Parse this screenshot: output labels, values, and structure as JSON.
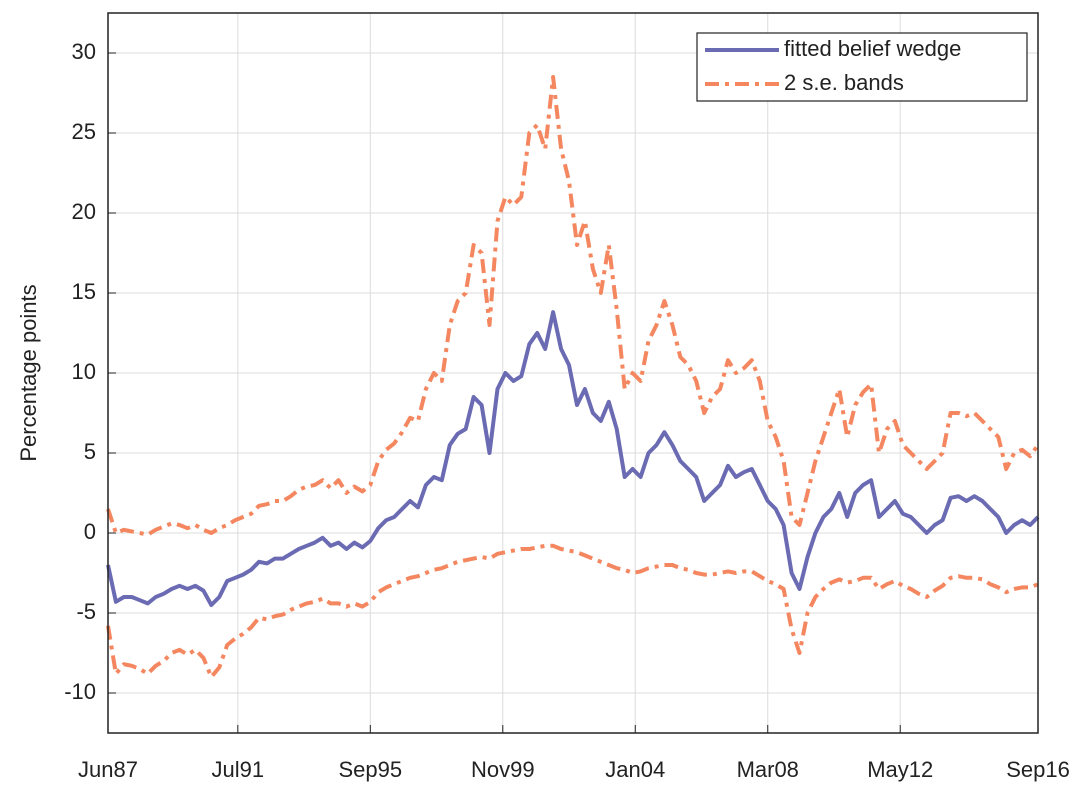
{
  "chart_data": {
    "type": "line",
    "ylabel": "Percentage points",
    "x": [
      "1987-06",
      "1987-09",
      "1987-12",
      "1988-03",
      "1988-06",
      "1988-09",
      "1988-12",
      "1989-03",
      "1989-06",
      "1989-09",
      "1989-12",
      "1990-03",
      "1990-06",
      "1990-09",
      "1990-12",
      "1991-03",
      "1991-06",
      "1991-09",
      "1991-12",
      "1992-03",
      "1992-06",
      "1992-09",
      "1992-12",
      "1993-03",
      "1993-06",
      "1993-09",
      "1993-12",
      "1994-03",
      "1994-06",
      "1994-09",
      "1994-12",
      "1995-03",
      "1995-06",
      "1995-09",
      "1995-12",
      "1996-03",
      "1996-06",
      "1996-09",
      "1996-12",
      "1997-03",
      "1997-06",
      "1997-09",
      "1997-12",
      "1998-03",
      "1998-06",
      "1998-09",
      "1998-12",
      "1999-03",
      "1999-06",
      "1999-09",
      "1999-12",
      "2000-03",
      "2000-06",
      "2000-09",
      "2000-12",
      "2001-03",
      "2001-06",
      "2001-09",
      "2001-12",
      "2002-03",
      "2002-06",
      "2002-09",
      "2002-12",
      "2003-03",
      "2003-06",
      "2003-09",
      "2003-12",
      "2004-03",
      "2004-06",
      "2004-09",
      "2004-12",
      "2005-03",
      "2005-06",
      "2005-09",
      "2005-12",
      "2006-03",
      "2006-06",
      "2006-09",
      "2006-12",
      "2007-03",
      "2007-06",
      "2007-09",
      "2007-12",
      "2008-03",
      "2008-06",
      "2008-09",
      "2008-12",
      "2009-03",
      "2009-06",
      "2009-09",
      "2009-12",
      "2010-03",
      "2010-06",
      "2010-09",
      "2010-12",
      "2011-03",
      "2011-06",
      "2011-09",
      "2011-12",
      "2012-03",
      "2012-06",
      "2012-09",
      "2012-12",
      "2013-03",
      "2013-06",
      "2013-09",
      "2013-12",
      "2014-03",
      "2014-06",
      "2014-09",
      "2014-12",
      "2015-03",
      "2015-06",
      "2015-09",
      "2015-12",
      "2016-03",
      "2016-06",
      "2016-09"
    ],
    "series": [
      {
        "name": "fitted belief wedge",
        "color": "#6b6bb3",
        "line_style": "solid",
        "values": [
          -2,
          -4.3,
          -4,
          -4,
          -4.2,
          -4.4,
          -4,
          -3.8,
          -3.5,
          -3.3,
          -3.5,
          -3.3,
          -3.6,
          -4.5,
          -4,
          -3,
          -2.8,
          -2.6,
          -2.3,
          -1.8,
          -1.9,
          -1.6,
          -1.6,
          -1.3,
          -1,
          -0.8,
          -0.6,
          -0.3,
          -0.8,
          -0.6,
          -1,
          -0.6,
          -0.9,
          -0.5,
          0.3,
          0.8,
          1,
          1.5,
          2,
          1.6,
          3,
          3.5,
          3.3,
          5.5,
          6.2,
          6.5,
          8.5,
          8,
          5,
          9,
          10,
          9.5,
          9.8,
          11.8,
          12.5,
          11.5,
          13.8,
          11.5,
          10.5,
          8,
          9,
          7.5,
          7,
          8.2,
          6.5,
          3.5,
          4,
          3.5,
          5,
          5.5,
          6.3,
          5.5,
          4.5,
          4,
          3.5,
          2,
          2.5,
          3,
          4.2,
          3.5,
          3.8,
          4,
          3,
          2,
          1.5,
          0.5,
          -2.5,
          -3.5,
          -1.5,
          0,
          1,
          1.5,
          2.5,
          1,
          2.5,
          3,
          3.3,
          1,
          1.5,
          2,
          1.2,
          1,
          0.5,
          0,
          0.5,
          0.8,
          2.2,
          2.3,
          2,
          2.3,
          2,
          1.5,
          1,
          0,
          0.5,
          0.8,
          0.5,
          1
        ]
      },
      {
        "name": "2 s.e. bands",
        "color": "#f4875f",
        "line_style": "dash-dot",
        "values": [
          1.5,
          0,
          0.2,
          0.1,
          0,
          -0.1,
          0.2,
          0.4,
          0.6,
          0.5,
          0.3,
          0.5,
          0.2,
          0,
          0.3,
          0.5,
          0.8,
          1,
          1.2,
          1.7,
          1.8,
          2,
          2,
          2.3,
          2.7,
          2.9,
          3,
          3.3,
          2.8,
          3.3,
          2.5,
          2.9,
          2.6,
          3,
          4.5,
          5.2,
          5.6,
          6.3,
          7.2,
          7,
          9,
          10,
          9.5,
          13,
          14.5,
          15,
          18,
          17.5,
          13,
          19.5,
          21,
          20.5,
          21,
          25,
          25.5,
          24,
          28.5,
          24,
          22,
          18,
          19.5,
          16.5,
          15,
          18,
          14,
          9,
          10,
          9.5,
          12,
          13,
          14.5,
          13,
          11,
          10.5,
          9.5,
          7.5,
          8.5,
          9,
          10.8,
          10,
          10.3,
          10.8,
          9.5,
          7,
          6,
          4.5,
          1,
          0.5,
          2.5,
          4.5,
          6,
          7.5,
          9,
          6,
          8,
          8.8,
          9.3,
          5,
          6.5,
          7,
          5.5,
          5,
          4.5,
          4,
          4.5,
          5,
          7.5,
          7.5,
          7.3,
          7.5,
          7,
          6.5,
          6,
          4,
          5,
          5.2,
          4.8,
          5.5
        ]
      },
      {
        "color": "#f4875f",
        "line_style": "dash-dot",
        "values": [
          -5.8,
          -8.8,
          -8.2,
          -8.3,
          -8.5,
          -8.8,
          -8.3,
          -8,
          -7.5,
          -7.3,
          -7.6,
          -7.3,
          -7.8,
          -9,
          -8.4,
          -7,
          -6.6,
          -6.3,
          -5.9,
          -5.3,
          -5.4,
          -5.2,
          -5.1,
          -4.8,
          -4.6,
          -4.4,
          -4.3,
          -4.1,
          -4.4,
          -4.4,
          -4.6,
          -4.4,
          -4.6,
          -4.3,
          -3.7,
          -3.4,
          -3.2,
          -3,
          -2.8,
          -2.7,
          -2.5,
          -2.3,
          -2.2,
          -2,
          -1.8,
          -1.7,
          -1.6,
          -1.5,
          -1.6,
          -1.3,
          -1.2,
          -1.1,
          -1,
          -1,
          -0.9,
          -0.8,
          -0.8,
          -1,
          -1.1,
          -1.2,
          -1.4,
          -1.6,
          -1.8,
          -2,
          -2.2,
          -2.3,
          -2.5,
          -2.4,
          -2.2,
          -2.1,
          -2,
          -2,
          -2.2,
          -2.3,
          -2.5,
          -2.6,
          -2.6,
          -2.5,
          -2.4,
          -2.5,
          -2.4,
          -2.4,
          -2.7,
          -3,
          -3.2,
          -3.5,
          -6,
          -7.5,
          -5,
          -4,
          -3.5,
          -3.1,
          -2.9,
          -3.1,
          -3,
          -2.8,
          -2.8,
          -3.5,
          -3.2,
          -3,
          -3.3,
          -3.5,
          -3.8,
          -4,
          -3.6,
          -3.3,
          -2.8,
          -2.7,
          -2.8,
          -2.8,
          -2.9,
          -3.2,
          -3.4,
          -3.7,
          -3.5,
          -3.4,
          -3.4,
          -3.2
        ]
      }
    ],
    "xlim": [
      "1987-06",
      "2016-09"
    ],
    "xticks": [
      {
        "value": "1987-06",
        "label": "Jun87"
      },
      {
        "value": "1991-07",
        "label": "Jul91"
      },
      {
        "value": "1995-09",
        "label": "Sep95"
      },
      {
        "value": "1999-11",
        "label": "Nov99"
      },
      {
        "value": "2004-01",
        "label": "Jan04"
      },
      {
        "value": "2008-03",
        "label": "Mar08"
      },
      {
        "value": "2012-05",
        "label": "May12"
      },
      {
        "value": "2016-09",
        "label": "Sep16"
      }
    ],
    "ylim": [
      -12.5,
      32.5
    ],
    "yticks": [
      -10,
      -5,
      0,
      5,
      10,
      15,
      20,
      25,
      30
    ],
    "grid": true,
    "legend": "top-right"
  }
}
